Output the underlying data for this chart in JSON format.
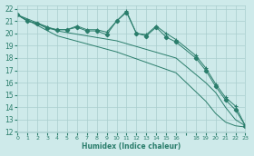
{
  "lines": [
    {
      "x": [
        0,
        1,
        2,
        3,
        4,
        5,
        6,
        7,
        8,
        9,
        10,
        11,
        12,
        13,
        14,
        15,
        16,
        18,
        19,
        20,
        21,
        22,
        23
      ],
      "y": [
        21.5,
        21.0,
        20.8,
        20.5,
        20.3,
        20.3,
        20.6,
        20.3,
        20.3,
        20.1,
        21.0,
        21.8,
        20.0,
        19.9,
        20.6,
        20.0,
        19.5,
        18.2,
        17.2,
        15.9,
        14.8,
        14.1,
        12.5
      ],
      "marker": "+"
    },
    {
      "x": [
        0,
        1,
        2,
        3,
        4,
        5,
        6,
        7,
        8,
        9,
        10,
        11,
        12,
        13,
        14,
        15,
        16,
        18,
        19,
        20,
        21,
        22,
        23
      ],
      "y": [
        21.5,
        21.0,
        20.8,
        20.4,
        20.3,
        20.3,
        20.5,
        20.2,
        20.2,
        19.9,
        21.0,
        21.7,
        20.0,
        19.8,
        20.5,
        19.7,
        19.3,
        18.0,
        17.0,
        15.7,
        14.6,
        13.8,
        12.5
      ],
      "marker": "D"
    },
    {
      "x": [
        0,
        4,
        10,
        16,
        19,
        20,
        21,
        22,
        23
      ],
      "y": [
        21.5,
        20.2,
        19.4,
        18.0,
        16.0,
        15.2,
        14.0,
        13.0,
        12.5
      ],
      "marker": null
    },
    {
      "x": [
        0,
        4,
        10,
        16,
        19,
        20,
        21,
        22,
        23
      ],
      "y": [
        21.5,
        19.8,
        18.5,
        16.8,
        14.5,
        13.5,
        12.8,
        12.5,
        12.4
      ],
      "marker": null
    }
  ],
  "color": "#2a7d6b",
  "bg_color": "#ceeaea",
  "grid_color": "#aacece",
  "xlabel": "Humidex (Indice chaleur)",
  "xlim": [
    0,
    23
  ],
  "ylim": [
    12,
    22.3
  ],
  "yticks": [
    12,
    13,
    14,
    15,
    16,
    17,
    18,
    19,
    20,
    21,
    22
  ],
  "xtick_labels": [
    "0",
    "1",
    "2",
    "3",
    "4",
    "5",
    "6",
    "7",
    "8",
    "9",
    "10",
    "11",
    "12",
    "13",
    "14",
    "15",
    "16",
    "",
    "18",
    "19",
    "20",
    "21",
    "22",
    "23"
  ]
}
